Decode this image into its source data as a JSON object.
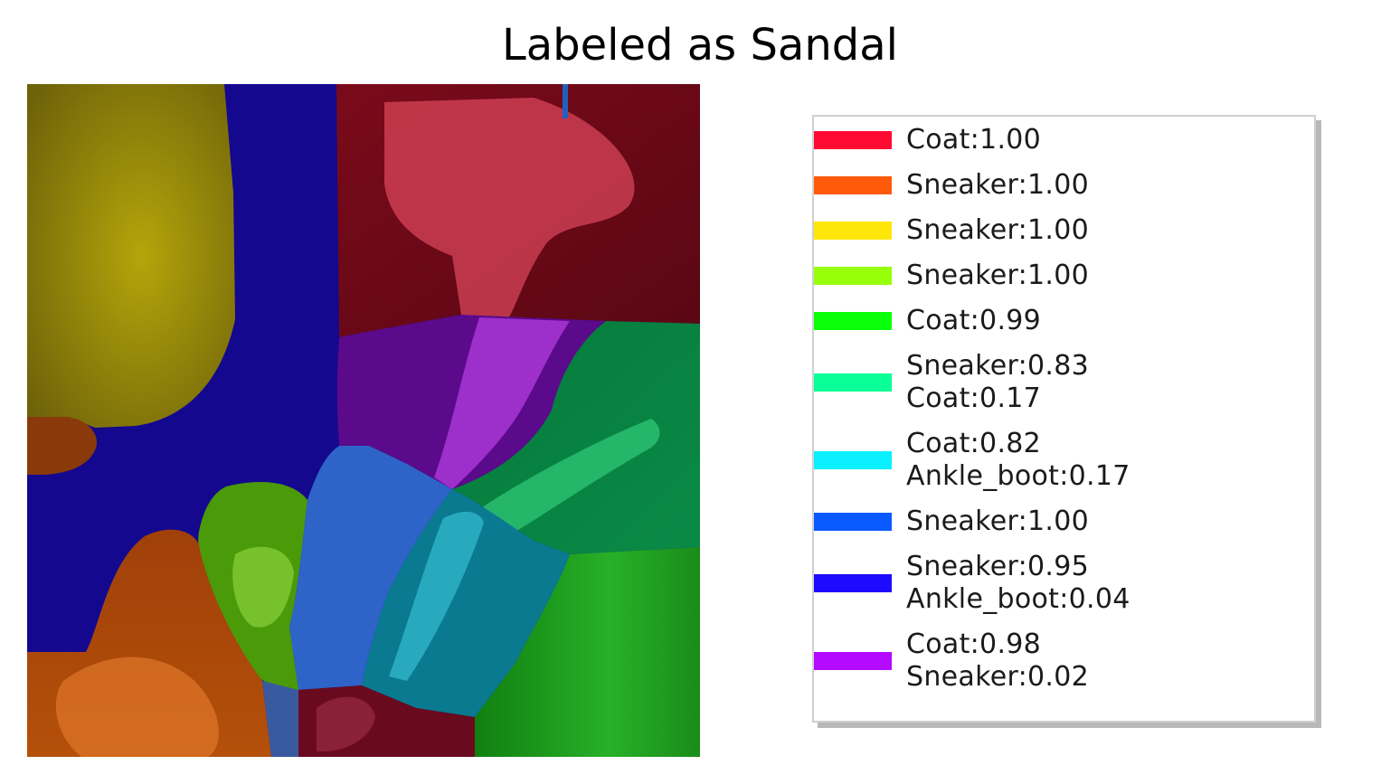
{
  "title": "Labeled as Sandal",
  "legend": [
    {
      "color": "#ff0a32",
      "lines": [
        "Coat:1.00"
      ]
    },
    {
      "color": "#ff5a0a",
      "lines": [
        "Sneaker:1.00"
      ]
    },
    {
      "color": "#ffe60a",
      "lines": [
        "Sneaker:1.00"
      ]
    },
    {
      "color": "#96ff0a",
      "lines": [
        "Sneaker:1.00"
      ]
    },
    {
      "color": "#0aff0a",
      "lines": [
        "Coat:0.99"
      ]
    },
    {
      "color": "#0aff96",
      "lines": [
        "Sneaker:0.83",
        "Coat:0.17"
      ]
    },
    {
      "color": "#0af0ff",
      "lines": [
        "Coat:0.82",
        "Ankle_boot:0.17"
      ]
    },
    {
      "color": "#0a5aff",
      "lines": [
        "Sneaker:1.00"
      ]
    },
    {
      "color": "#1e0aff",
      "lines": [
        "Sneaker:0.95",
        "Ankle_boot:0.04"
      ]
    },
    {
      "color": "#b40aff",
      "lines": [
        "Coat:0.98",
        "Sneaker:0.02"
      ]
    }
  ]
}
